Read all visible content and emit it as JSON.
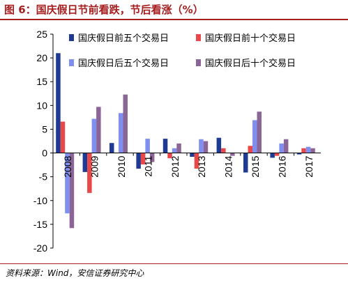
{
  "figure": {
    "title": "图 6：国庆假日节前看跌，节后看涨（%）",
    "source": "资料来源：Wind，安信证券研究中心"
  },
  "chart_data": {
    "type": "bar",
    "title": "",
    "xlabel": "",
    "ylabel": "",
    "ylim": [
      -20,
      25
    ],
    "yticks": [
      -20,
      -15,
      -10,
      -5,
      0,
      5,
      10,
      15,
      20,
      25
    ],
    "grid": false,
    "legend_position": "top-right",
    "categories": [
      "2008",
      "2009",
      "2010",
      "2011",
      "2012",
      "2013",
      "2014",
      "2015",
      "2016",
      "2017"
    ],
    "series": [
      {
        "name": "国庆假日前五个交易日",
        "color": "#1f3a93",
        "values": [
          21.0,
          -4.0,
          2.1,
          -3.3,
          3.0,
          -0.8,
          3.2,
          -4.1,
          -1.0,
          -0.3
        ]
      },
      {
        "name": "国庆假日前十个交易日",
        "color": "#e84848",
        "values": [
          6.6,
          -8.4,
          0.0,
          -2.4,
          -1.1,
          -3.3,
          1.0,
          1.5,
          -0.6,
          1.0
        ]
      },
      {
        "name": "国庆假日后五个交易日",
        "color": "#7f8ff0",
        "values": [
          -12.7,
          7.2,
          8.4,
          3.0,
          1.0,
          2.9,
          0.0,
          6.9,
          2.0,
          1.3
        ]
      },
      {
        "name": "国庆假日后十个交易日",
        "color": "#8c6597",
        "values": [
          -15.8,
          9.7,
          12.3,
          -1.9,
          2.0,
          2.5,
          -0.6,
          8.7,
          2.9,
          1.0
        ]
      }
    ]
  }
}
